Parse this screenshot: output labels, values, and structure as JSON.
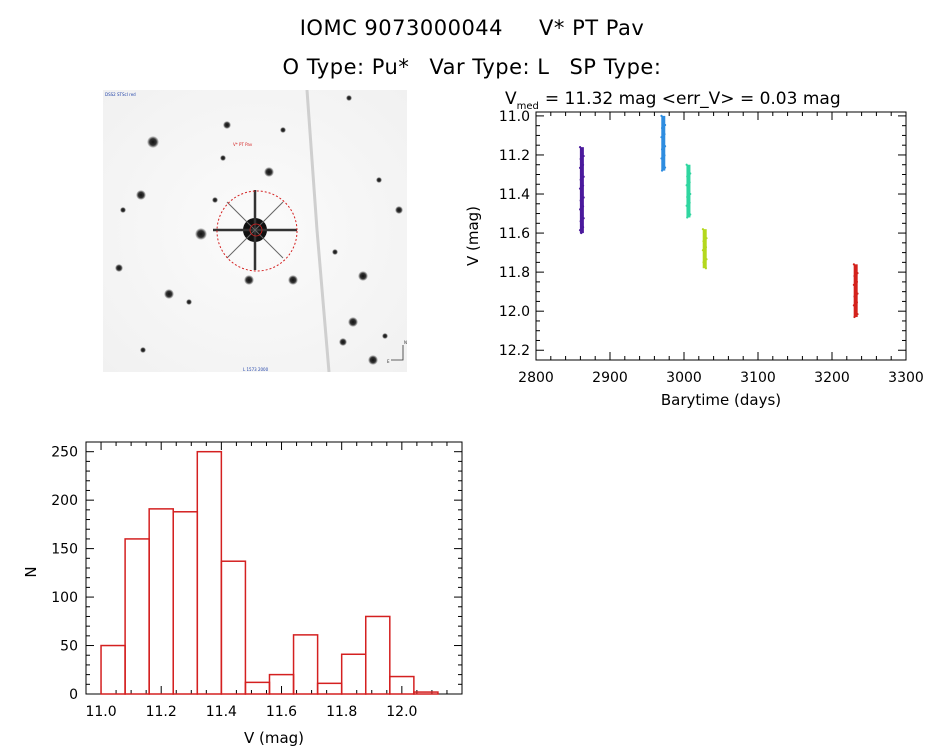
{
  "header": {
    "object_name": "IOMC 9073000044",
    "star_name": "V* PT Pav",
    "o_type": "O Type: Pu*",
    "var_type": "Var Type: L",
    "sp_type": "SP Type:"
  },
  "chart_data": [
    {
      "type": "scatter",
      "title_main": "V",
      "title_sub": "med",
      "title_rest": "= 11.32 mag <err_V> = 0.03 mag",
      "xlabel": "Barytime (days)",
      "ylabel": "V (mag)",
      "xlim": [
        2800,
        3300
      ],
      "ylim": [
        12.25,
        10.98
      ],
      "xticks": [
        2800,
        2900,
        3000,
        3100,
        3200,
        3300
      ],
      "xtick_labels": [
        "2800",
        "2900",
        "3000",
        "3100",
        "3200",
        "3300"
      ],
      "yticks": [
        11.0,
        11.2,
        11.4,
        11.6,
        11.8,
        12.0,
        12.2
      ],
      "ytick_labels": [
        "11.0",
        "11.2",
        "11.4",
        "11.6",
        "11.8",
        "12.0",
        "12.2"
      ],
      "grid": false,
      "series": [
        {
          "x": 2862,
          "y_min": 11.16,
          "y_max": 11.6,
          "color": "#4b1a9c"
        },
        {
          "x": 2972,
          "y_min": 11.0,
          "y_max": 11.28,
          "color": "#2f8de0"
        },
        {
          "x": 3006,
          "y_min": 11.25,
          "y_max": 11.52,
          "color": "#2fd6a0"
        },
        {
          "x": 3028,
          "y_min": 11.58,
          "y_max": 11.78,
          "color": "#b4d81e"
        },
        {
          "x": 3232,
          "y_min": 11.76,
          "y_max": 12.03,
          "color": "#d4221c"
        }
      ]
    },
    {
      "type": "bar",
      "xlabel": "V (mag)",
      "ylabel": "N",
      "xlim": [
        10.95,
        12.2
      ],
      "ylim": [
        0,
        260
      ],
      "xticks": [
        11.0,
        11.2,
        11.4,
        11.6,
        11.8,
        12.0
      ],
      "xtick_labels": [
        "11.0",
        "11.2",
        "11.4",
        "11.6",
        "11.8",
        "12.0"
      ],
      "yticks": [
        0,
        50,
        100,
        150,
        200,
        250
      ],
      "ytick_labels": [
        "0",
        "50",
        "100",
        "150",
        "200",
        "250"
      ],
      "bin_edges": [
        11.0,
        11.08,
        11.16,
        11.24,
        11.32,
        11.4,
        11.48,
        11.56,
        11.64,
        11.72,
        11.8,
        11.88,
        11.96,
        12.04,
        12.12
      ],
      "values": [
        50,
        160,
        191,
        188,
        250,
        137,
        12,
        20,
        61,
        11,
        41,
        80,
        18,
        2
      ],
      "bar_color": "#d42020"
    }
  ],
  "image_panel": {
    "labels": [
      "DSS2 STScI red",
      "V* PT Pav",
      "L 1573 2000",
      "N",
      "E"
    ]
  }
}
